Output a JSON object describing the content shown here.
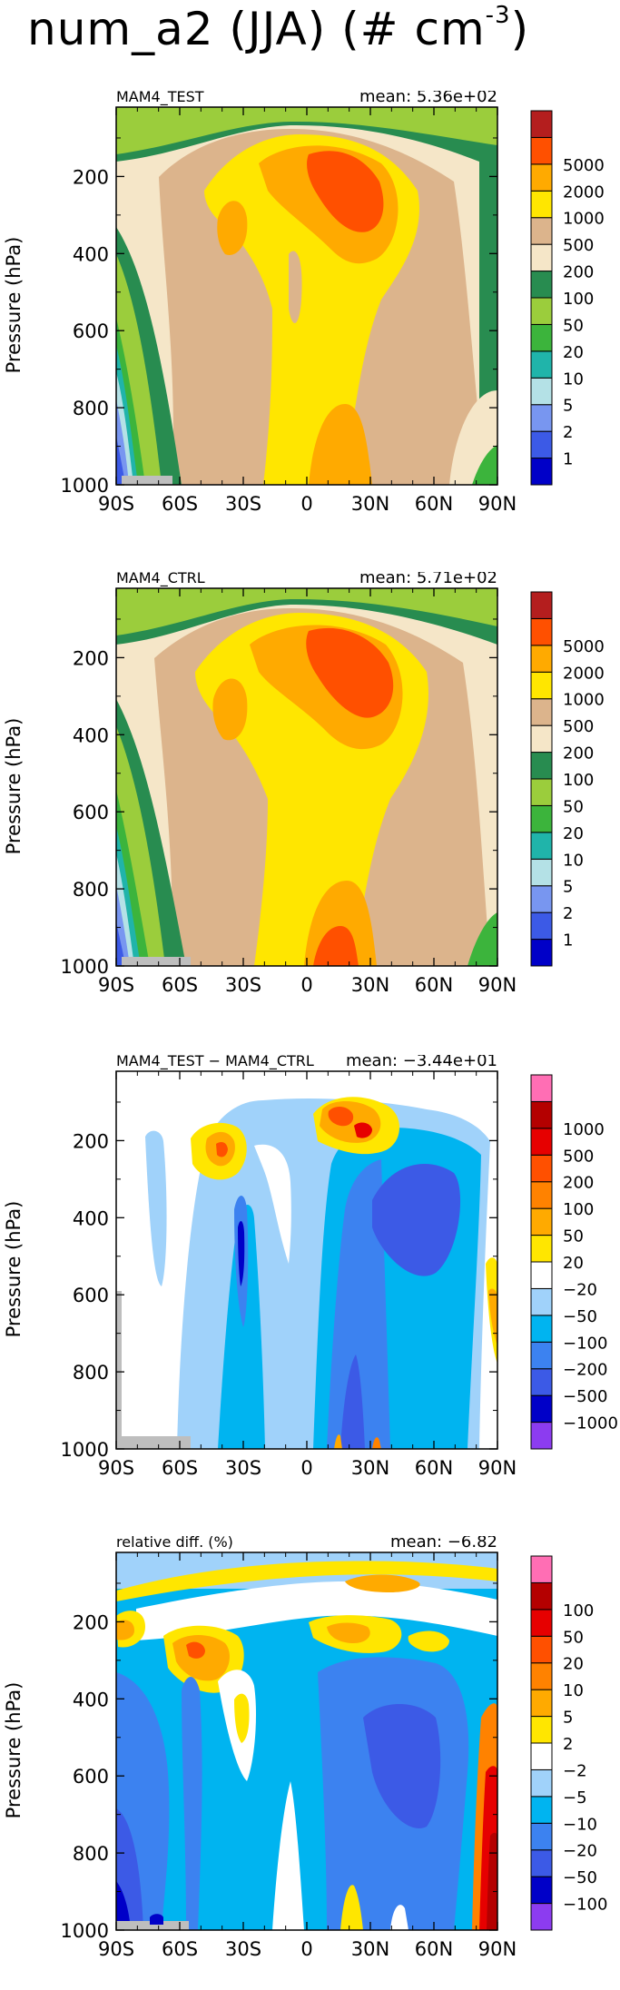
{
  "figure": {
    "title_main": "num_a2 (JJA) (# cm",
    "title_exp": "-3",
    "title_close": ")"
  },
  "chart_data": [
    {
      "type": "heatmap",
      "left_label": "MAM4_TEST",
      "right_label": "mean: 5.36e+02",
      "ylabel": "Pressure (hPa)",
      "x_ticks": [
        "90S",
        "60S",
        "30S",
        "0",
        "30N",
        "60N",
        "90N"
      ],
      "y_ticks": [
        200,
        400,
        600,
        800,
        1000
      ],
      "xlim": [
        -90,
        90
      ],
      "ylim": [
        1000,
        20
      ],
      "levels": [
        1,
        2,
        5,
        10,
        20,
        50,
        100,
        200,
        500,
        1000,
        2000,
        5000
      ],
      "colors": [
        "#0000c8",
        "#3c5ae6",
        "#7896f0",
        "#b4e1e6",
        "#20b4aa",
        "#3cb43c",
        "#9bcd3c",
        "#288c50",
        "#f5e6c8",
        "#dcb48c",
        "#ffe600",
        "#ffaa00",
        "#ff5000",
        "#b41e1e"
      ]
    },
    {
      "type": "heatmap",
      "left_label": "MAM4_CTRL",
      "right_label": "mean: 5.71e+02",
      "ylabel": "Pressure (hPa)",
      "x_ticks": [
        "90S",
        "60S",
        "30S",
        "0",
        "30N",
        "60N",
        "90N"
      ],
      "y_ticks": [
        200,
        400,
        600,
        800,
        1000
      ],
      "xlim": [
        -90,
        90
      ],
      "ylim": [
        1000,
        20
      ],
      "levels": [
        1,
        2,
        5,
        10,
        20,
        50,
        100,
        200,
        500,
        1000,
        2000,
        5000
      ],
      "colors": [
        "#0000c8",
        "#3c5ae6",
        "#7896f0",
        "#b4e1e6",
        "#20b4aa",
        "#3cb43c",
        "#9bcd3c",
        "#288c50",
        "#f5e6c8",
        "#dcb48c",
        "#ffe600",
        "#ffaa00",
        "#ff5000",
        "#b41e1e"
      ]
    },
    {
      "type": "heatmap",
      "left_label": "MAM4_TEST − MAM4_CTRL",
      "right_label": "mean: −3.44e+01",
      "ylabel": "Pressure (hPa)",
      "x_ticks": [
        "90S",
        "60S",
        "30S",
        "0",
        "30N",
        "60N",
        "90N"
      ],
      "y_ticks": [
        200,
        400,
        600,
        800,
        1000
      ],
      "xlim": [
        -90,
        90
      ],
      "ylim": [
        1000,
        20
      ],
      "levels": [
        -1000,
        -500,
        -200,
        -100,
        -50,
        -20,
        20,
        50,
        100,
        200,
        500,
        1000
      ],
      "colors": [
        "#8c3cf0",
        "#0000c8",
        "#3c5ae6",
        "#3c82f0",
        "#00b4f0",
        "#a0d2fa",
        "#ffffff",
        "#ffe600",
        "#ffaa00",
        "#ff8200",
        "#ff5000",
        "#e60000",
        "#b40000",
        "#ff6eb4"
      ]
    },
    {
      "type": "heatmap",
      "left_label": "relative diff. (%)",
      "right_label": "mean: −6.82",
      "ylabel": "Pressure (hPa)",
      "x_ticks": [
        "90S",
        "60S",
        "30S",
        "0",
        "30N",
        "60N",
        "90N"
      ],
      "y_ticks": [
        200,
        400,
        600,
        800,
        1000
      ],
      "xlim": [
        -90,
        90
      ],
      "ylim": [
        1000,
        20
      ],
      "levels": [
        -100,
        -50,
        -20,
        -10,
        -5,
        -2,
        2,
        5,
        10,
        20,
        50,
        100
      ],
      "colors": [
        "#8c3cf0",
        "#0000c8",
        "#3c5ae6",
        "#3c82f0",
        "#00b4f0",
        "#a0d2fa",
        "#ffffff",
        "#ffe600",
        "#ffaa00",
        "#ff8200",
        "#ff5000",
        "#e60000",
        "#b40000",
        "#ff6eb4"
      ]
    }
  ]
}
